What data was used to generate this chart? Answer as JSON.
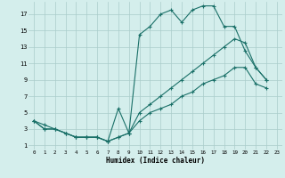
{
  "title": "",
  "xlabel": "Humidex (Indice chaleur)",
  "background_color": "#d4eeec",
  "grid_color": "#aaccca",
  "line_color": "#1a7068",
  "xlim": [
    -0.5,
    23.5
  ],
  "ylim": [
    0.5,
    18.5
  ],
  "xticks": [
    0,
    1,
    2,
    3,
    4,
    5,
    6,
    7,
    8,
    9,
    10,
    11,
    12,
    13,
    14,
    15,
    16,
    17,
    18,
    19,
    20,
    21,
    22,
    23
  ],
  "yticks": [
    1,
    3,
    5,
    7,
    9,
    11,
    13,
    15,
    17
  ],
  "series1_x": [
    0,
    1,
    2,
    3,
    4,
    5,
    6,
    7,
    8,
    9,
    10,
    11,
    12,
    13,
    14,
    15,
    16,
    17,
    18,
    19,
    20,
    21,
    22
  ],
  "series1_y": [
    4,
    3.5,
    3,
    2.5,
    2,
    2,
    2,
    1.5,
    5.5,
    2.5,
    14.5,
    15.5,
    17,
    17.5,
    16,
    17.5,
    18,
    18,
    15.5,
    15.5,
    12.5,
    10.5,
    9
  ],
  "series2_x": [
    0,
    1,
    2,
    3,
    4,
    5,
    6,
    7,
    8,
    9,
    10,
    11,
    12,
    13,
    14,
    15,
    16,
    17,
    18,
    19,
    20,
    21,
    22
  ],
  "series2_y": [
    4,
    3,
    3,
    2.5,
    2,
    2,
    2,
    1.5,
    2,
    2.5,
    5,
    6,
    7,
    8,
    9,
    10,
    11,
    12,
    13,
    14,
    13.5,
    10.5,
    9
  ],
  "series3_x": [
    0,
    1,
    2,
    3,
    4,
    5,
    6,
    7,
    8,
    9,
    10,
    11,
    12,
    13,
    14,
    15,
    16,
    17,
    18,
    19,
    20,
    21,
    22
  ],
  "series3_y": [
    4,
    3,
    3,
    2.5,
    2,
    2,
    2,
    1.5,
    2,
    2.5,
    4,
    5,
    5.5,
    6,
    7,
    7.5,
    8.5,
    9,
    9.5,
    10.5,
    10.5,
    8.5,
    8
  ]
}
